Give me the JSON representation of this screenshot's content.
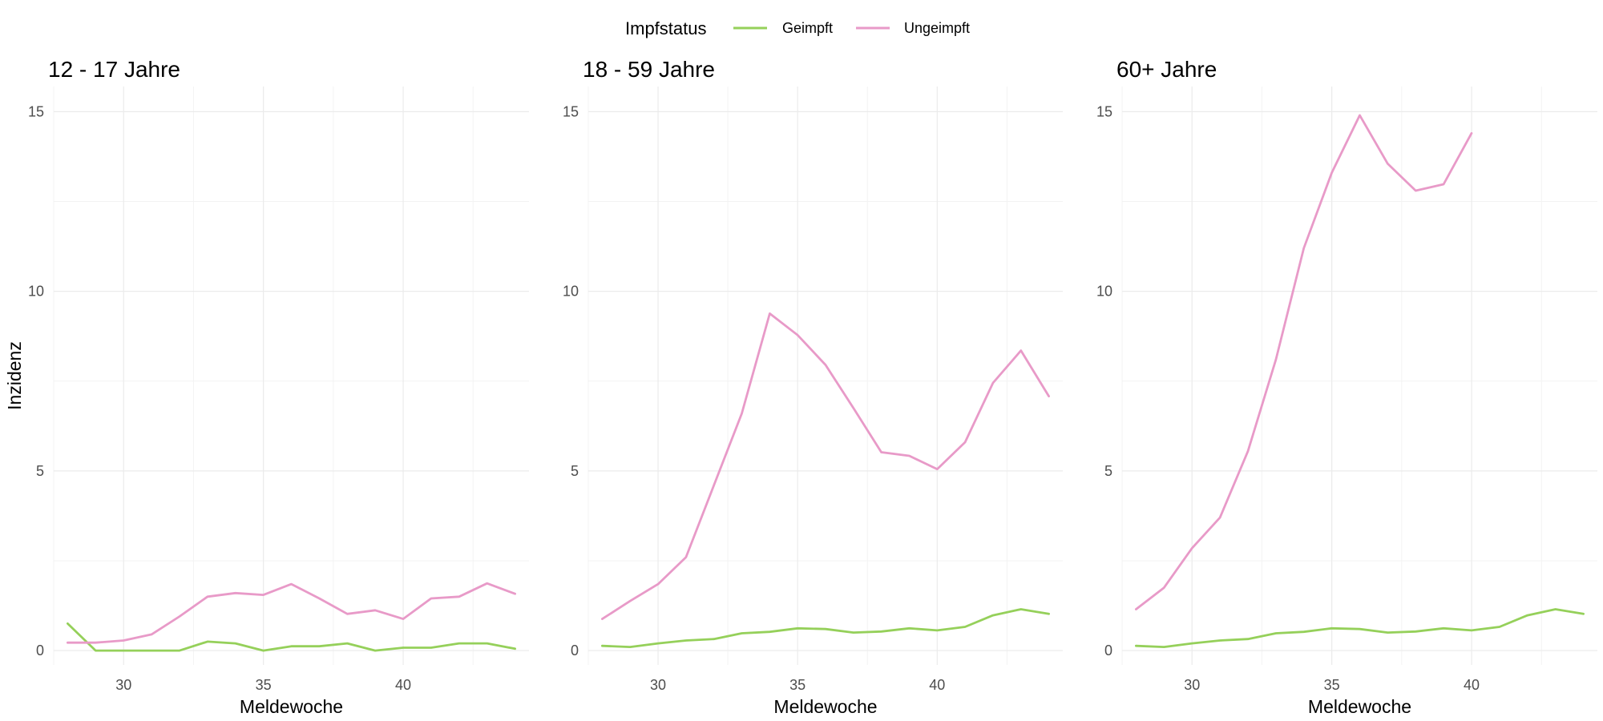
{
  "chart_data": {
    "type": "line",
    "colors": {
      "Geimpft": "#95d05a",
      "Ungeimpft": "#e89ac8"
    },
    "legend": {
      "title": "Impfstatus",
      "entries": [
        "Geimpft",
        "Ungeimpft"
      ],
      "position": "top"
    },
    "ylabel": "Inzidenz",
    "xlabel": "Meldewoche",
    "xlim": [
      27.5,
      44.5
    ],
    "ylim": [
      -0.4,
      15.7
    ],
    "x_ticks": [
      30,
      35,
      40
    ],
    "y_ticks": [
      0,
      5,
      10,
      15
    ],
    "grid": true,
    "panels": [
      {
        "title": "12 - 17 Jahre",
        "series": [
          {
            "name": "Geimpft",
            "x": [
              28,
              29,
              30,
              31,
              32,
              33,
              34,
              35,
              36,
              37,
              38,
              39,
              40,
              41,
              42,
              43,
              44
            ],
            "values": [
              0.75,
              0.0,
              0.0,
              0.0,
              0.0,
              0.25,
              0.2,
              0.0,
              0.12,
              0.12,
              0.2,
              0.0,
              0.08,
              0.08,
              0.2,
              0.2,
              0.05
            ]
          },
          {
            "name": "Ungeimpft",
            "x": [
              28,
              29,
              30,
              31,
              32,
              33,
              34,
              35,
              36,
              37,
              38,
              39,
              40,
              41,
              42,
              43,
              44
            ],
            "values": [
              0.22,
              0.22,
              0.28,
              0.45,
              0.95,
              1.5,
              1.6,
              1.55,
              1.85,
              1.45,
              1.02,
              1.12,
              0.88,
              1.45,
              1.5,
              1.87,
              1.58
            ]
          }
        ]
      },
      {
        "title": "18 - 59 Jahre",
        "series": [
          {
            "name": "Geimpft",
            "x": [
              28,
              29,
              30,
              31,
              32,
              33,
              34,
              35,
              36,
              37,
              38,
              39,
              40,
              41,
              42,
              43,
              44
            ],
            "values": [
              0.13,
              0.1,
              0.2,
              0.28,
              0.32,
              0.48,
              0.52,
              0.62,
              0.6,
              0.5,
              0.53,
              0.62,
              0.56,
              0.66,
              0.98,
              1.15,
              1.02
            ]
          },
          {
            "name": "Ungeimpft",
            "x": [
              28,
              29,
              30,
              31,
              32,
              33,
              34,
              35,
              36,
              37,
              38,
              39,
              40,
              41,
              42,
              43,
              44
            ],
            "values": [
              0.88,
              1.38,
              1.85,
              2.6,
              4.6,
              6.6,
              9.38,
              8.78,
              7.95,
              6.75,
              5.52,
              5.42,
              5.05,
              5.8,
              7.45,
              8.35,
              7.08
            ]
          }
        ]
      },
      {
        "title": "60+ Jahre",
        "series": [
          {
            "name": "Geimpft",
            "x": [
              28,
              29,
              30,
              31,
              32,
              33,
              34,
              35,
              36,
              37,
              38,
              39,
              40,
              41,
              42,
              43,
              44
            ],
            "values": [
              0.13,
              0.1,
              0.2,
              0.28,
              0.32,
              0.48,
              0.52,
              0.62,
              0.6,
              0.5,
              0.53,
              0.62,
              0.56,
              0.66,
              0.98,
              1.15,
              1.02
            ]
          },
          {
            "name": "Ungeimpft",
            "x": [
              28,
              29,
              30,
              31,
              32,
              33,
              34,
              35,
              36,
              37,
              38,
              39,
              40
            ],
            "values": [
              1.15,
              1.75,
              2.85,
              3.7,
              5.55,
              8.1,
              11.2,
              13.3,
              14.9,
              13.55,
              12.8,
              12.98,
              14.4
            ]
          }
        ]
      }
    ]
  }
}
